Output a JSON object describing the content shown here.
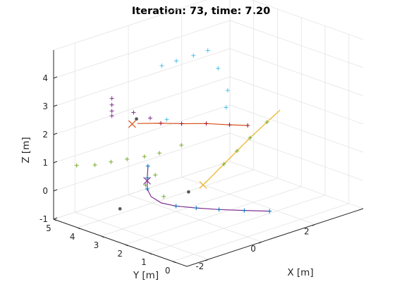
{
  "chart_data": {
    "type": "line3d",
    "title": "Iteration: 73, time: 7.20",
    "axes": {
      "x": {
        "label": "X [m]",
        "range": [
          -2.8,
          3.8
        ],
        "ticks": [
          -2,
          0,
          2
        ],
        "tick_labels": [
          "-2",
          "0",
          "2"
        ]
      },
      "y": {
        "label": "Y [m]",
        "range": [
          -0.6,
          5
        ],
        "ticks": [
          0,
          1,
          2,
          3,
          4,
          5
        ],
        "tick_labels": [
          "0",
          "1",
          "2",
          "3",
          "4",
          "5"
        ]
      },
      "z": {
        "label": "Z [m]",
        "range": [
          -1,
          5
        ],
        "ticks": [
          -1,
          0,
          1,
          2,
          3,
          4
        ],
        "tick_labels": [
          "-1",
          "0",
          "1",
          "2",
          "3",
          "4"
        ]
      }
    },
    "grid": true,
    "view": "3d-perspective",
    "series": [
      {
        "color": "#7e2f8e",
        "marker_color": "#0072bd",
        "path": [
          [
            -1.3,
            2.72,
            1.1
          ],
          [
            -1.34,
            2.7,
            0.7
          ],
          [
            -1.36,
            2.68,
            0.32
          ],
          [
            -1.29,
            2.6,
            0.05
          ],
          [
            -1.1,
            2.38,
            -0.17
          ],
          [
            -0.8,
            2.1,
            -0.29
          ],
          [
            -0.4,
            1.7,
            -0.36
          ],
          [
            0.05,
            1.25,
            -0.42
          ],
          [
            0.55,
            0.75,
            -0.46
          ],
          [
            1.05,
            0.25,
            -0.49
          ]
        ],
        "markers": [
          [
            -1.3,
            2.72,
            1.1
          ],
          [
            -1.34,
            2.7,
            0.7
          ],
          [
            -1.36,
            2.68,
            0.32
          ],
          [
            -0.8,
            2.1,
            -0.29
          ],
          [
            -0.4,
            1.7,
            -0.36
          ],
          [
            0.05,
            1.25,
            -0.42
          ],
          [
            0.55,
            0.75,
            -0.46
          ],
          [
            1.05,
            0.25,
            -0.49
          ]
        ],
        "current": [
          -1.35,
          2.7,
          0.6
        ],
        "start": [
          -1.25,
          3.95,
          -0.8
        ]
      },
      {
        "color": "#d95319",
        "marker_color": "#a2142f",
        "path": [
          [
            -2.65,
            1.65,
            3.35
          ],
          [
            -1.95,
            1.45,
            3.2
          ],
          [
            -1.35,
            1.25,
            3.06
          ],
          [
            -0.65,
            1.0,
            2.92
          ],
          [
            0.0,
            0.75,
            2.75
          ],
          [
            0.5,
            0.55,
            2.63
          ]
        ],
        "markers": [
          [
            -1.95,
            1.45,
            3.2
          ],
          [
            -1.35,
            1.25,
            3.06
          ],
          [
            -0.65,
            1.0,
            2.92
          ],
          [
            0.0,
            0.75,
            2.75
          ],
          [
            0.5,
            0.55,
            2.63
          ]
        ],
        "current": [
          -2.8,
          1.7,
          3.36
        ],
        "start": [
          -2.62,
          1.72,
          3.48
        ]
      },
      {
        "color": "#edb120",
        "marker_color": "#77ac30",
        "path": [
          [
            -0.85,
            0.8,
            0.95
          ],
          [
            -0.3,
            0.65,
            1.48
          ],
          [
            0.1,
            0.55,
            1.85
          ],
          [
            0.5,
            0.45,
            2.22
          ],
          [
            1.0,
            0.3,
            2.67
          ],
          [
            1.4,
            0.2,
            3.0
          ]
        ],
        "markers": [
          [
            -0.3,
            0.65,
            1.48
          ],
          [
            0.1,
            0.55,
            1.85
          ],
          [
            0.5,
            0.45,
            2.22
          ],
          [
            1.0,
            0.3,
            2.67
          ]
        ],
        "current": [
          -0.95,
          0.8,
          0.9
        ],
        "start": [
          -1.0,
          1.35,
          0.5
        ]
      },
      {
        "color": "#4dbeee",
        "marker_color": "#4dbeee",
        "path": [],
        "markers": [
          [
            -1.2,
            2.25,
            4.77
          ],
          [
            -0.7,
            2.2,
            4.8
          ],
          [
            -0.15,
            2.1,
            4.85
          ],
          [
            0.3,
            2.0,
            4.92
          ],
          [
            0.55,
            1.85,
            4.25
          ],
          [
            0.6,
            1.5,
            3.56
          ],
          [
            0.45,
            1.4,
            3.03
          ],
          [
            -0.7,
            2.6,
            2.6
          ]
        ],
        "current": null,
        "start": null
      },
      {
        "color": "#77ac30",
        "marker_color": "#77ac30",
        "path": [],
        "markers": [
          [
            -2.65,
            4.2,
            1.1
          ],
          [
            -2.5,
            3.6,
            1.25
          ],
          [
            -2.3,
            3.15,
            1.43
          ],
          [
            -2.1,
            2.7,
            1.6
          ],
          [
            -1.85,
            2.25,
            1.75
          ],
          [
            -1.6,
            1.9,
            1.9
          ],
          [
            -1.8,
            1.85,
            1.2
          ],
          [
            -1.85,
            2.2,
            0.75
          ],
          [
            -1.35,
            2.0,
            0.25
          ],
          [
            -0.2,
            2.55,
            1.55
          ]
        ],
        "current": null,
        "start": null
      },
      {
        "color": "#7e2f8e",
        "marker_color": "#7e2f8e",
        "path": [],
        "markers": [
          [
            -2.0,
            3.45,
            3.5
          ],
          [
            -2.0,
            3.45,
            3.27
          ],
          [
            -2.0,
            3.45,
            3.05
          ],
          [
            -2.0,
            3.45,
            2.88
          ],
          [
            -1.5,
            3.1,
            2.95
          ],
          [
            -1.1,
            2.85,
            2.7
          ]
        ],
        "current": null,
        "start": null
      }
    ]
  }
}
